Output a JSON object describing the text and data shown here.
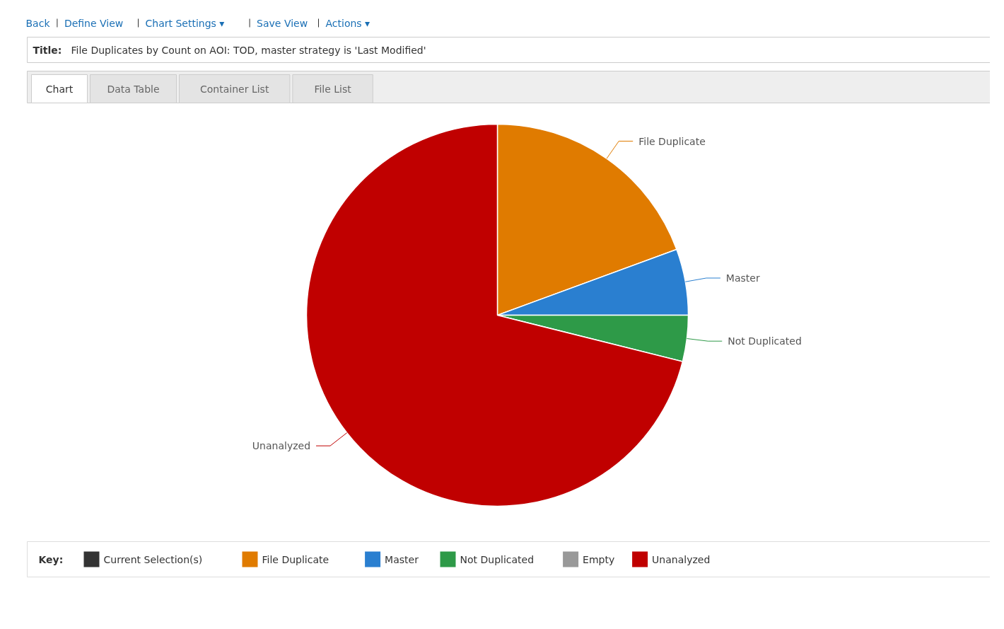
{
  "chart_data": {
    "type": "pie",
    "title": "File Duplicates by Count on AOI: TOD, master strategy is 'Last Modified'",
    "categories": [
      "Current Selection(s)",
      "File Duplicate",
      "Master",
      "Not Duplicated",
      "Empty",
      "Unanalyzed"
    ],
    "values": [
      0,
      19.4,
      5.6,
      3.9,
      0,
      71.1
    ],
    "colors": [
      "#333333",
      "#e07b00",
      "#2a7fd0",
      "#2e9a48",
      "#999999",
      "#c00000"
    ],
    "legend": "bottom",
    "legend_title": "Key:",
    "annotations": [
      "Back",
      "Define View",
      "Chart Settings ▾",
      "Save View",
      "Actions ▾",
      "Chart",
      "Data Table",
      "Container List",
      "File List",
      "Title:"
    ]
  }
}
